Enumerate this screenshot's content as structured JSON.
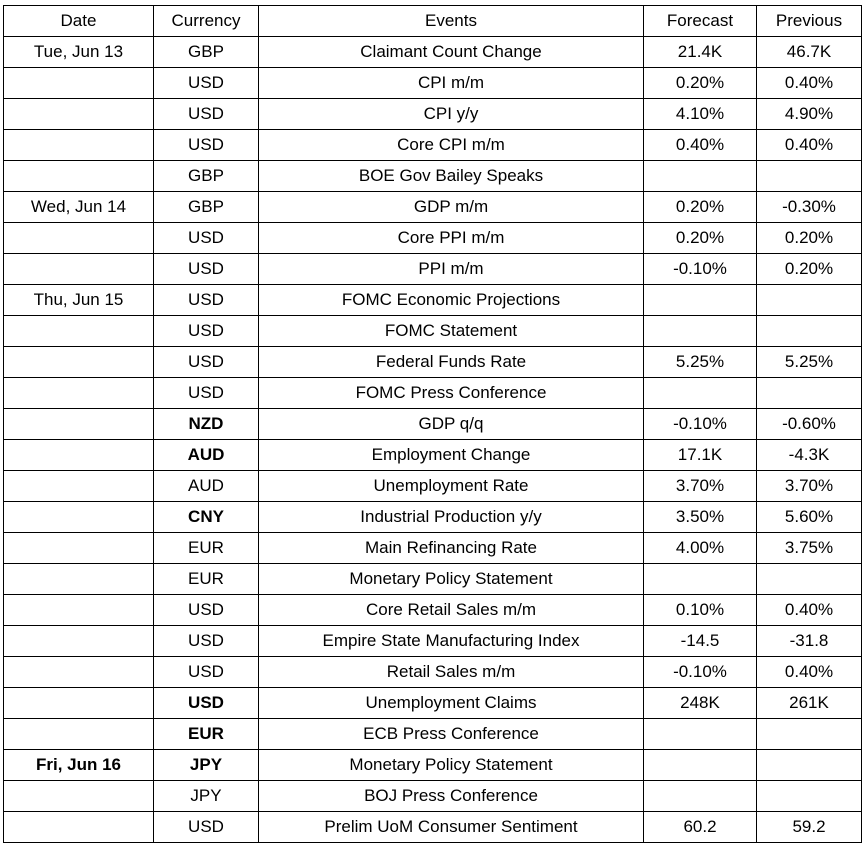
{
  "headers": {
    "date": "Date",
    "currency": "Currency",
    "events": "Events",
    "forecast": "Forecast",
    "previous": "Previous"
  },
  "rows": [
    {
      "date": "Tue, Jun 13",
      "currency": "GBP",
      "event": "Claimant Count Change",
      "forecast": "21.4K",
      "previous": "46.7K"
    },
    {
      "date": "",
      "currency": "USD",
      "event": "CPI m/m",
      "forecast": "0.20%",
      "previous": "0.40%"
    },
    {
      "date": "",
      "currency": "USD",
      "event": "CPI y/y",
      "forecast": "4.10%",
      "previous": "4.90%"
    },
    {
      "date": "",
      "currency": "USD",
      "event": "Core CPI m/m",
      "forecast": "0.40%",
      "previous": "0.40%"
    },
    {
      "date": "",
      "currency": "GBP",
      "event": "BOE Gov Bailey Speaks",
      "forecast": "",
      "previous": ""
    },
    {
      "date": "Wed, Jun 14",
      "currency": "GBP",
      "event": "GDP m/m",
      "forecast": "0.20%",
      "previous": "-0.30%"
    },
    {
      "date": "",
      "currency": "USD",
      "event": "Core PPI m/m",
      "forecast": "0.20%",
      "previous": "0.20%"
    },
    {
      "date": "",
      "currency": "USD",
      "event": "PPI m/m",
      "forecast": "-0.10%",
      "previous": "0.20%"
    },
    {
      "date": "Thu, Jun 15",
      "currency": "USD",
      "event": "FOMC Economic Projections",
      "forecast": "",
      "previous": ""
    },
    {
      "date": "",
      "currency": "USD",
      "event": "FOMC Statement",
      "forecast": "",
      "previous": ""
    },
    {
      "date": "",
      "currency": "USD",
      "event": "Federal Funds Rate",
      "forecast": "5.25%",
      "previous": "5.25%"
    },
    {
      "date": "",
      "currency": "USD",
      "event": "FOMC Press Conference",
      "forecast": "",
      "previous": ""
    },
    {
      "date": "",
      "currency": "NZD",
      "event": "GDP q/q",
      "forecast": "-0.10%",
      "previous": "-0.60%"
    },
    {
      "date": "",
      "currency": "AUD",
      "event": "Employment Change",
      "forecast": "17.1K",
      "previous": "-4.3K"
    },
    {
      "date": "",
      "currency": "AUD",
      "event": "Unemployment Rate",
      "forecast": "3.70%",
      "previous": "3.70%"
    },
    {
      "date": "",
      "currency": "CNY",
      "event": "Industrial Production y/y",
      "forecast": "3.50%",
      "previous": "5.60%"
    },
    {
      "date": "",
      "currency": "EUR",
      "event": "Main Refinancing Rate",
      "forecast": "4.00%",
      "previous": "3.75%"
    },
    {
      "date": "",
      "currency": "EUR",
      "event": "Monetary Policy Statement",
      "forecast": "",
      "previous": ""
    },
    {
      "date": "",
      "currency": "USD",
      "event": "Core Retail Sales m/m",
      "forecast": "0.10%",
      "previous": "0.40%"
    },
    {
      "date": "",
      "currency": "USD",
      "event": "Empire State Manufacturing Index",
      "forecast": "-14.5",
      "previous": "-31.8"
    },
    {
      "date": "",
      "currency": "USD",
      "event": "Retail Sales m/m",
      "forecast": "-0.10%",
      "previous": "0.40%"
    },
    {
      "date": "",
      "currency": "USD",
      "event": "Unemployment Claims",
      "forecast": "248K",
      "previous": "261K"
    },
    {
      "date": "",
      "currency": "EUR",
      "event": "ECB Press Conference",
      "forecast": "",
      "previous": ""
    },
    {
      "date": "Fri, Jun 16",
      "currency": "JPY",
      "event": "Monetary Policy Statement",
      "forecast": "",
      "previous": ""
    },
    {
      "date": "",
      "currency": "JPY",
      "event": "BOJ Press Conference",
      "forecast": "",
      "previous": ""
    },
    {
      "date": "",
      "currency": "USD",
      "event": "Prelim UoM Consumer Sentiment",
      "forecast": "60.2",
      "previous": "59.2"
    }
  ],
  "bold_date_rows": [
    23
  ],
  "bold_currency_rows": [
    12,
    13,
    15,
    21,
    22,
    23
  ]
}
